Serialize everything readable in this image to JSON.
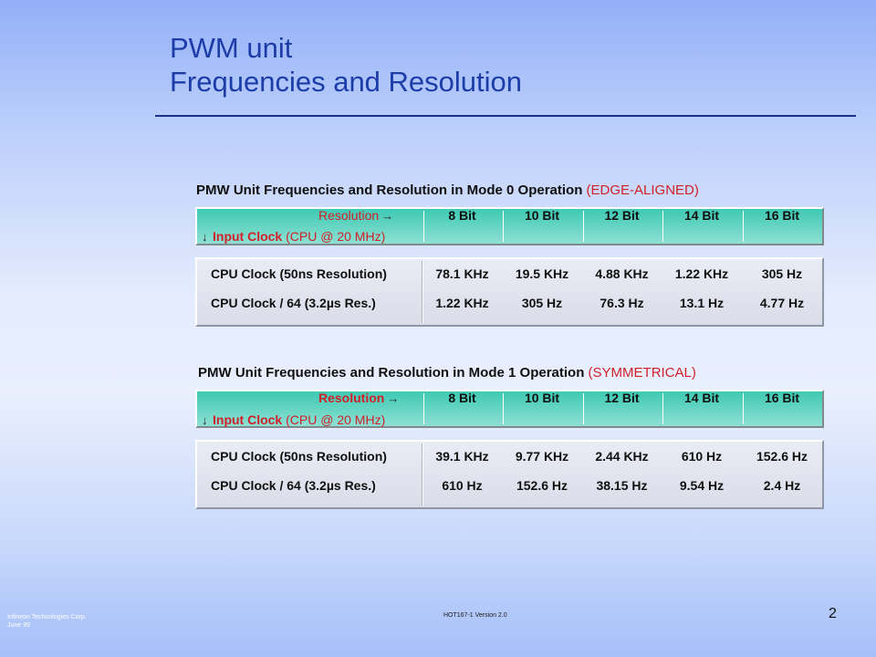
{
  "slide": {
    "title_line1": "PWM unit",
    "title_line2": "Frequencies and Resolution",
    "page_number": "2",
    "footer_company": "Infineon Technologies Corp.",
    "footer_date": "June 99",
    "footer_version": "HOT167-1  Version 2.0"
  },
  "header": {
    "resolution_label": "Resolution",
    "arrow_right": "→",
    "arrow_down": "↓",
    "input_clock_bold": "Input Clock",
    "input_clock_rest": " (CPU @ 20 MHz)",
    "columns": [
      "8 Bit",
      "10 Bit",
      "12 Bit",
      "14 Bit",
      "16 Bit"
    ]
  },
  "tables": [
    {
      "heading": "PMW Unit Frequencies  and  Resolution  in Mode 0 Operation ",
      "heading_accent": "(EDGE-ALIGNED)",
      "rows": [
        {
          "label": "CPU Clock (50ns Resolution)",
          "values": [
            "78.1 KHz",
            "19.5 KHz",
            "4.88 KHz",
            "1.22 KHz",
            "305 Hz"
          ]
        },
        {
          "label": "CPU Clock / 64 (3.2µs Res.)",
          "values": [
            "1.22 KHz",
            "305 Hz",
            "76.3 Hz",
            "13.1 Hz",
            "4.77 Hz"
          ]
        }
      ]
    },
    {
      "heading": "PMW Unit Frequencies  and  Resolution  in Mode 1 Operation ",
      "heading_accent": "(SYMMETRICAL)",
      "rows": [
        {
          "label": "CPU Clock (50ns Resolution)",
          "values": [
            "39.1 KHz",
            "9.77 KHz",
            "2.44 KHz",
            "610 Hz",
            "152.6 Hz"
          ]
        },
        {
          "label": "CPU Clock / 64 (3.2µs Res.)",
          "values": [
            "610 Hz",
            "152.6 Hz",
            "38.15 Hz",
            "9.54 Hz",
            "2.4 Hz"
          ]
        }
      ]
    }
  ]
}
